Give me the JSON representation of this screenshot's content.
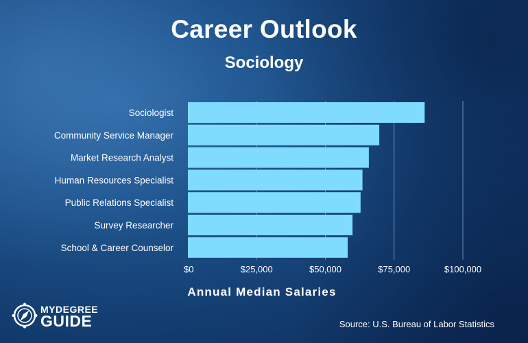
{
  "header": {
    "title": "Career Outlook",
    "subtitle": "Sociology"
  },
  "chart_data": {
    "type": "bar",
    "orientation": "horizontal",
    "categories": [
      "Sociologist",
      "Community Service Manager",
      "Market Research Analyst",
      "Human Resources Specialist",
      "Public Relations Specialist",
      "Survey Researcher",
      "School & Career Counselor"
    ],
    "values": [
      86110,
      69600,
      65810,
      63490,
      62800,
      59870,
      58120
    ],
    "xlim": [
      0,
      100000
    ],
    "x_ticks": [
      0,
      25000,
      50000,
      75000,
      100000
    ],
    "x_tick_labels": [
      "$0",
      "$25,000",
      "$50,000",
      "$75,000",
      "$100,000"
    ],
    "xlabel": "Annual Median Salaries",
    "ylabel": "",
    "grid": "vertical",
    "bar_color": "#7fdcff",
    "grid_color": "#6d8fb8"
  },
  "footer": {
    "source": "Source: U.S. Bureau of Labor Statistics"
  },
  "logo": {
    "line1": "MYDEGREE",
    "line2": "GUIDE",
    "icon": "compass-icon"
  }
}
